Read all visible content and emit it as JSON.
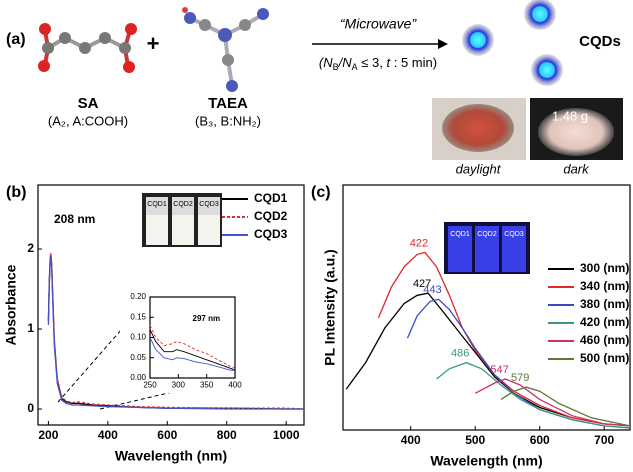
{
  "panel_a": {
    "panel": "(a)",
    "plus": "+",
    "sa": {
      "name": "SA",
      "formula": "(A₂, A:COOH)"
    },
    "taea": {
      "name": "TAEA",
      "formula": "(B₃, B:NH₂)"
    },
    "arrow_label": "“Microwave”",
    "condition": [
      "(N",
      "B",
      "/N",
      "A",
      " ≤ 3, ",
      "t",
      " : 5 min)"
    ],
    "product": "CQDs",
    "mass": "1.48 g",
    "photo_labels": [
      "daylight",
      "dark"
    ]
  },
  "vials_b": [
    "CQD1",
    "CQD2",
    "CQD3"
  ],
  "vials_c": [
    "CQD1",
    "CQD2",
    "CQD3"
  ],
  "chart_data": [
    {
      "type": "line",
      "panel": "(b)",
      "xlabel": "Wavelength (nm)",
      "ylabel": "Absorbance",
      "annotation": "208 nm",
      "xlim": [
        165,
        1060
      ],
      "xticks": [
        200,
        400,
        600,
        800,
        1000
      ],
      "ylim": [
        -0.2,
        2.8
      ],
      "yticks": [
        0,
        1,
        2
      ],
      "legend": "upper right",
      "series": [
        {
          "name": "CQD1",
          "color": "#000000",
          "linestyle": "solid",
          "x": [
            200,
            203,
            206,
            208,
            211,
            215,
            220,
            230,
            245,
            260,
            280,
            300,
            350,
            400,
            500,
            600,
            800,
            1000,
            1060
          ],
          "values": [
            1.1,
            1.6,
            1.88,
            1.93,
            1.8,
            1.35,
            0.85,
            0.35,
            0.13,
            0.09,
            0.07,
            0.07,
            0.05,
            0.04,
            0.02,
            0.01,
            0.01,
            0,
            0
          ]
        },
        {
          "name": "CQD2",
          "color": "#e03030",
          "linestyle": "dashed",
          "x": [
            200,
            203,
            206,
            208,
            211,
            215,
            220,
            230,
            245,
            260,
            280,
            300,
            350,
            400,
            500,
            600,
            800,
            1000,
            1060
          ],
          "values": [
            1.1,
            1.6,
            1.9,
            1.95,
            1.82,
            1.38,
            0.88,
            0.38,
            0.15,
            0.1,
            0.08,
            0.09,
            0.06,
            0.05,
            0.03,
            0.02,
            0.01,
            0.01,
            0
          ]
        },
        {
          "name": "CQD3",
          "color": "#4455cc",
          "linestyle": "solid",
          "x": [
            200,
            203,
            206,
            208,
            211,
            215,
            220,
            230,
            245,
            260,
            280,
            300,
            350,
            400,
            500,
            600,
            800,
            1000,
            1060
          ],
          "values": [
            1.05,
            1.55,
            1.85,
            1.9,
            1.76,
            1.3,
            0.8,
            0.32,
            0.11,
            0.07,
            0.05,
            0.05,
            0.04,
            0.03,
            0.02,
            0.01,
            0,
            0,
            0
          ]
        }
      ]
    },
    {
      "type": "line",
      "annotation": "297 nm",
      "xlim": [
        250,
        400
      ],
      "xticks": [
        250,
        300,
        350,
        400
      ],
      "ylim": [
        0,
        0.2
      ],
      "yticks": [
        {
          "value": 0,
          "label": "0.00"
        },
        {
          "value": 0.05,
          "label": "0.05"
        },
        {
          "value": 0.1,
          "label": "0.10"
        },
        {
          "value": 0.15,
          "label": "0.15"
        },
        {
          "value": 0.2,
          "label": "0.20"
        }
      ],
      "series": [
        {
          "color": "#000000",
          "linestyle": "solid",
          "x": [
            250,
            260,
            275,
            290,
            297,
            310,
            330,
            350,
            370,
            390,
            400
          ],
          "values": [
            0.12,
            0.09,
            0.065,
            0.065,
            0.07,
            0.065,
            0.055,
            0.045,
            0.035,
            0.025,
            0.02
          ]
        },
        {
          "color": "#e03030",
          "linestyle": "dashed",
          "x": [
            250,
            260,
            275,
            290,
            297,
            310,
            330,
            350,
            370,
            390,
            400
          ],
          "values": [
            0.13,
            0.1,
            0.08,
            0.085,
            0.09,
            0.085,
            0.07,
            0.06,
            0.045,
            0.03,
            0.025
          ]
        },
        {
          "color": "#4455cc",
          "linestyle": "solid",
          "x": [
            250,
            260,
            275,
            290,
            297,
            310,
            330,
            350,
            370,
            390,
            400
          ],
          "values": [
            0.1,
            0.07,
            0.05,
            0.045,
            0.05,
            0.048,
            0.04,
            0.035,
            0.028,
            0.02,
            0.018
          ]
        }
      ]
    },
    {
      "type": "line",
      "panel": "(c)",
      "xlabel": "Wavelength (nm)",
      "ylabel": "PL Intensity (a.u.)",
      "xlim": [
        295,
        740
      ],
      "xticks": [
        400,
        500,
        600,
        700
      ],
      "ylim": [
        0,
        1.2
      ],
      "legend": "center right",
      "series": [
        {
          "name": "300 (nm)",
          "color": "#000000",
          "peak_label": "427",
          "x": [
            300,
            330,
            360,
            390,
            410,
            427,
            450,
            480,
            500,
            530,
            560,
            600,
            650,
            700,
            740
          ],
          "values": [
            0.2,
            0.33,
            0.5,
            0.62,
            0.66,
            0.67,
            0.58,
            0.46,
            0.38,
            0.26,
            0.18,
            0.11,
            0.06,
            0.03,
            0.02
          ]
        },
        {
          "name": "340 (nm)",
          "color": "#e02828",
          "peak_label": "422",
          "x": [
            350,
            370,
            390,
            410,
            422,
            440,
            460,
            480,
            500,
            530,
            560,
            600,
            650,
            700,
            740
          ],
          "values": [
            0.55,
            0.7,
            0.8,
            0.86,
            0.87,
            0.8,
            0.66,
            0.5,
            0.39,
            0.27,
            0.19,
            0.12,
            0.06,
            0.03,
            0.02
          ]
        },
        {
          "name": "380 (nm)",
          "color": "#3a48c8",
          "peak_label": "443",
          "x": [
            395,
            410,
            430,
            443,
            460,
            480,
            500,
            530,
            560,
            600,
            650,
            700,
            740
          ],
          "values": [
            0.45,
            0.56,
            0.63,
            0.64,
            0.59,
            0.5,
            0.4,
            0.27,
            0.18,
            0.1,
            0.05,
            0.02,
            0.01
          ]
        },
        {
          "name": "420 (nm)",
          "color": "#3a9a7a",
          "peak_label": "486",
          "x": [
            440,
            460,
            486,
            510,
            540,
            570,
            600,
            650,
            700,
            740
          ],
          "values": [
            0.25,
            0.3,
            0.33,
            0.3,
            0.22,
            0.15,
            0.1,
            0.05,
            0.02,
            0.01
          ]
        },
        {
          "name": "460 (nm)",
          "color": "#c8306a",
          "peak_label": "547",
          "x": [
            500,
            530,
            547,
            570,
            600,
            650,
            700,
            740
          ],
          "values": [
            0.18,
            0.23,
            0.25,
            0.22,
            0.15,
            0.07,
            0.03,
            0.02
          ]
        },
        {
          "name": "500 (nm)",
          "color": "#5a7a30",
          "peak_label": "579",
          "x": [
            540,
            560,
            579,
            600,
            630,
            680,
            740
          ],
          "values": [
            0.15,
            0.19,
            0.21,
            0.19,
            0.13,
            0.06,
            0.02
          ]
        }
      ]
    }
  ]
}
